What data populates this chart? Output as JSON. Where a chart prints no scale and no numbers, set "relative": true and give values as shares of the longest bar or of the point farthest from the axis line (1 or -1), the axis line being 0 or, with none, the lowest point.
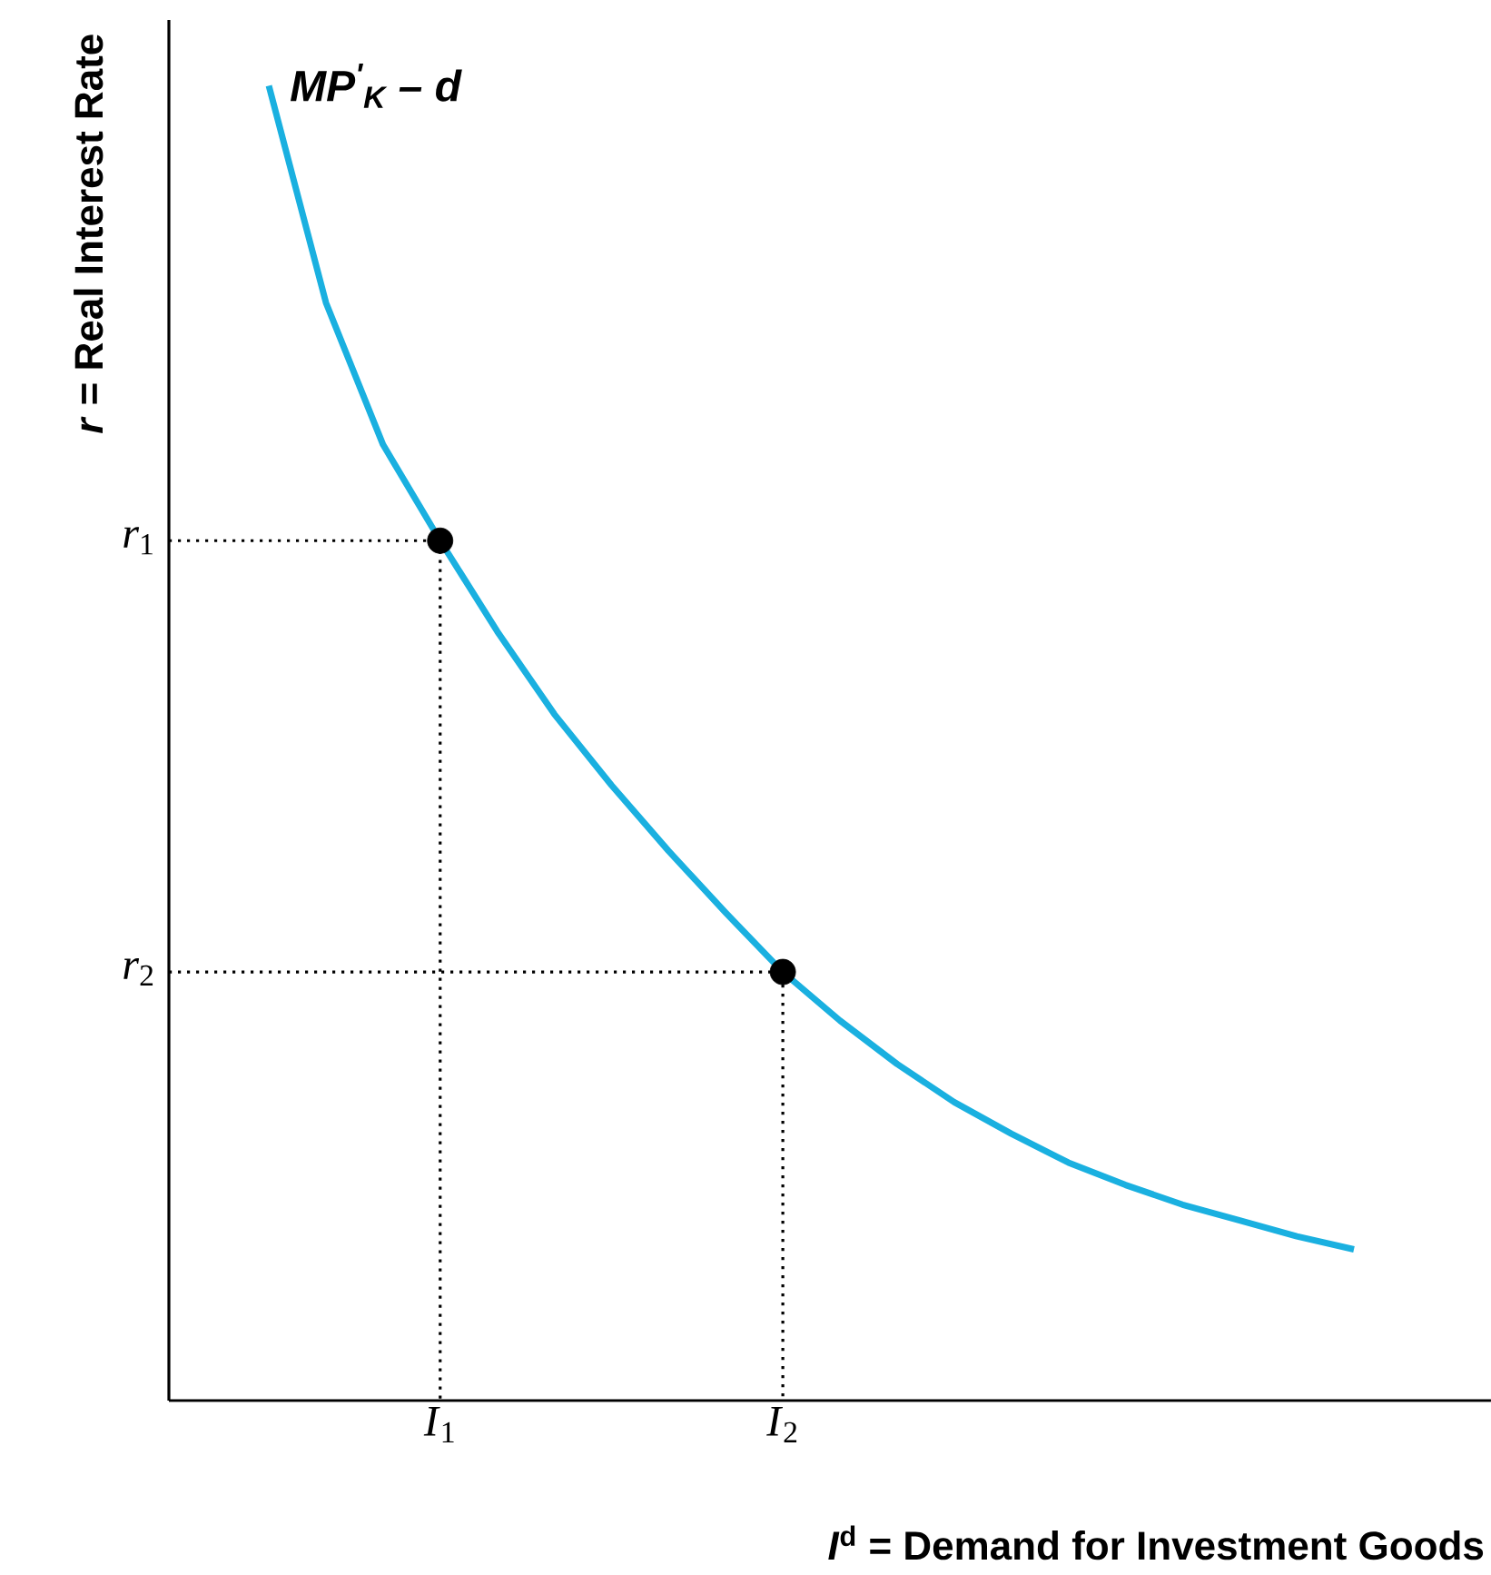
{
  "chart_data": {
    "type": "line",
    "relative": true,
    "xlabel": "*I*$^{d}$ = Demand for Investment Goods",
    "ylabel": "*r* = Real Interest Rate",
    "categories": [
      null,
      null,
      null,
      "*I*$_{1}$",
      null,
      null,
      null,
      null,
      null,
      "*I*$_{2}$",
      null,
      null,
      null,
      null,
      null,
      null,
      null,
      null,
      null,
      null
    ],
    "annotations": [
      "MP$^{'}$$_{K}$ – d",
      "*r*$_{1}$",
      "*r*$_{2}$"
    ],
    "series": [
      {
        "color": "#1ab0e0",
        "values": [
          1,
          0.835,
          0.727,
          0.654,
          0.585,
          0.522,
          0.468,
          0.418,
          0.371,
          0.326,
          0.289,
          0.256,
          0.227,
          0.203,
          0.181,
          0.164,
          0.149,
          0.137,
          0.125,
          0.115
        ]
      },
      {
        "type": "scatter",
        "color": "#000000",
        "marker": "circle",
        "values": [
          null,
          null,
          null,
          0.654,
          null,
          null,
          null,
          null,
          null,
          0.326,
          null,
          null,
          null,
          null,
          null,
          null,
          null,
          null,
          null,
          null
        ]
      }
    ]
  }
}
